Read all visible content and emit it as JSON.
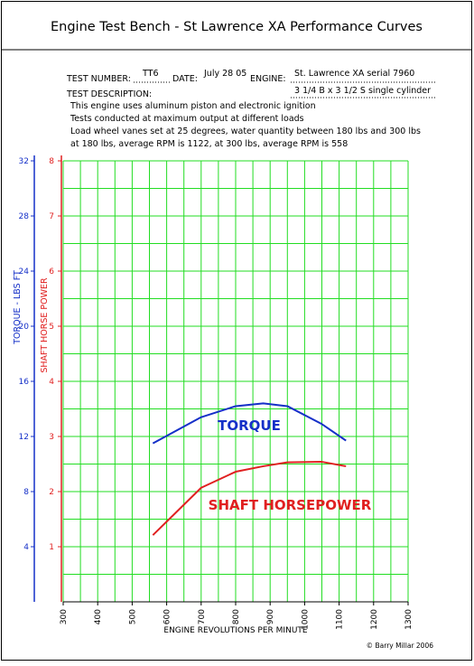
{
  "title": "Engine Test Bench - St Lawrence XA Performance Curves",
  "form": {
    "test_number_label": "TEST NUMBER:",
    "test_number": "TT6",
    "date_label": "DATE:",
    "date": "July 28 05",
    "engine_label": "ENGINE:",
    "engine": "St. Lawrence XA  serial 7960",
    "engine_detail": "3 1/4 B x 3 1/2 S  single cylinder",
    "description_label": "TEST DESCRIPTION:",
    "description": [
      "This engine uses aluminum piston and electronic ignition",
      "Tests conducted at maximum output at different loads",
      "Load wheel vanes set at 25 degrees, water quantity between 180 lbs and 300 lbs",
      "at 180 lbs, average RPM is 1122, at 300 lbs, average RPM is 558"
    ]
  },
  "copyright": "© Barry Millar 2006",
  "chart_data": {
    "type": "line",
    "x_label": "ENGINE REVOLUTIONS PER MINUTE",
    "y_label": "TORQUE - LBS FT",
    "y2_label": "SHAFT HORSE POWER",
    "x": [
      560,
      700,
      800,
      880,
      950,
      1050,
      1120
    ],
    "series": [
      {
        "name": "TORQUE",
        "color": "#1530c8",
        "values": [
          11.5,
          13.4,
          14.2,
          14.4,
          14.2,
          12.9,
          11.7
        ]
      },
      {
        "name": "SHAFT HORSEPOWER",
        "color": "#e02020",
        "axis": "y2",
        "values": [
          1.21,
          2.07,
          2.36,
          2.46,
          2.53,
          2.54,
          2.46
        ]
      }
    ],
    "xlim": [
      300,
      1300
    ],
    "xticks": [
      300,
      400,
      500,
      600,
      700,
      800,
      900,
      1000,
      1100,
      1200,
      1300
    ],
    "ylim": [
      0,
      32
    ],
    "yticks": [
      4,
      8,
      12,
      16,
      20,
      24,
      28,
      32
    ],
    "y2lim": [
      0,
      8
    ],
    "y2ticks": [
      1,
      2,
      3,
      4,
      5,
      6,
      7,
      8
    ],
    "grid": true,
    "grid_color": "#22dd22",
    "y_color": "#1530c8",
    "y2_color": "#e02020"
  }
}
